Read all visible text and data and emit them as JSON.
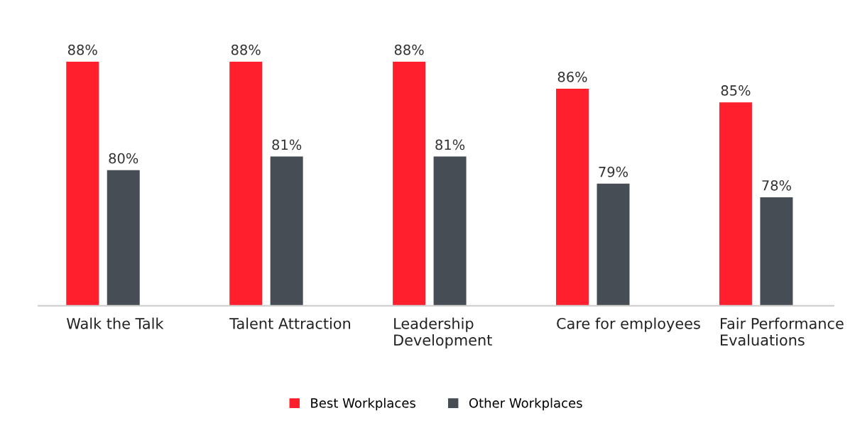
{
  "chart_data": {
    "type": "bar",
    "categories": [
      "Walk the Talk",
      "Talent Attraction",
      "Leadership\nDevelopment",
      "Care for employees",
      "Fair Performance\nEvaluations"
    ],
    "series": [
      {
        "name": "Best Workplaces",
        "color": "#ff1f2d",
        "values": [
          88,
          88,
          88,
          86,
          85
        ],
        "value_labels": [
          "88%",
          "88%",
          "88%",
          "86%",
          "85%"
        ]
      },
      {
        "name": "Other Workplaces",
        "color": "#474d55",
        "values": [
          80,
          81,
          81,
          79,
          78
        ],
        "value_labels": [
          "80%",
          "81%",
          "81%",
          "79%",
          "78%"
        ]
      }
    ],
    "ylim": [
      70,
      88
    ],
    "tick_labels": "x",
    "grid": false,
    "legend": "bottom"
  }
}
